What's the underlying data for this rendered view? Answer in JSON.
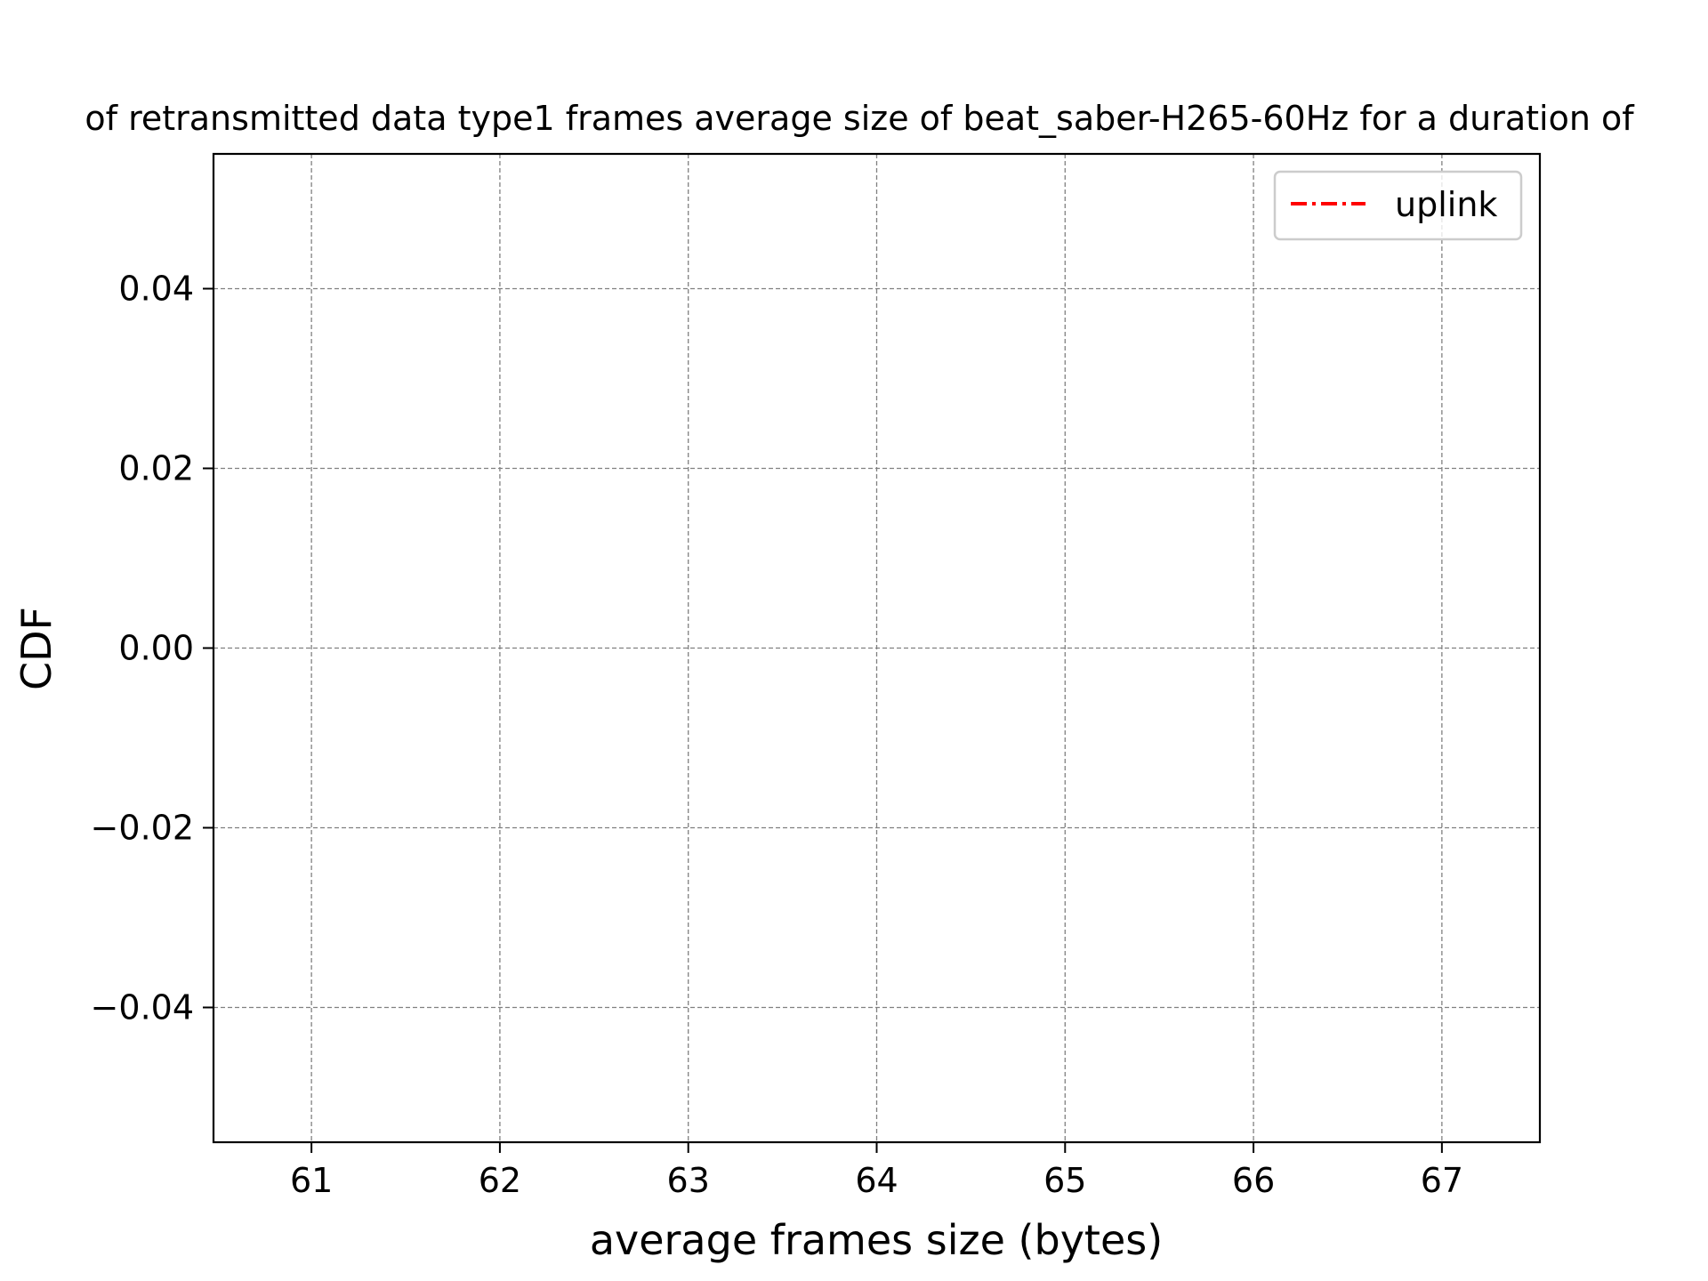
{
  "chart_data": {
    "type": "line",
    "title": "of retransmitted data type1 frames average size of beat_saber-H265-60Hz for a duration of",
    "xlabel": "average frames size (bytes)",
    "ylabel": "CDF",
    "xlim": [
      60.48,
      67.52
    ],
    "ylim": [
      -0.055,
      0.055
    ],
    "xticks": [
      61,
      62,
      63,
      64,
      65,
      66,
      67
    ],
    "xtick_labels": [
      "61",
      "62",
      "63",
      "64",
      "65",
      "66",
      "67"
    ],
    "yticks": [
      -0.04,
      -0.02,
      0.0,
      0.02,
      0.04
    ],
    "ytick_labels": [
      "−0.04",
      "−0.02",
      "0.00",
      "0.02",
      "0.04"
    ],
    "grid": true,
    "legend_position": "top-right",
    "series": [
      {
        "name": "uplink",
        "color": "#ff0000",
        "linestyle": "dash-dot",
        "x": [],
        "y": []
      }
    ]
  }
}
